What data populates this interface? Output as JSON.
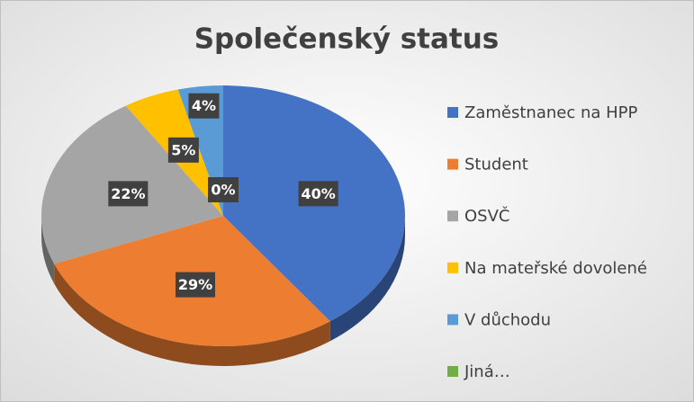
{
  "chart_data": {
    "type": "pie",
    "title": "Společenský status",
    "categories": [
      "Zaměstnanec na HPP",
      "Student",
      "OSVČ",
      "Na mateřské dovolené",
      "V důchodu",
      "Jiná…"
    ],
    "values": [
      40,
      29,
      22,
      5,
      4,
      0
    ],
    "value_labels": [
      "40%",
      "29%",
      "22%",
      "5%",
      "4%",
      "0%"
    ],
    "colors": [
      "#4472c4",
      "#ed7d31",
      "#a5a5a5",
      "#ffc000",
      "#5b9bd5",
      "#70ad47"
    ],
    "legend": "right"
  }
}
